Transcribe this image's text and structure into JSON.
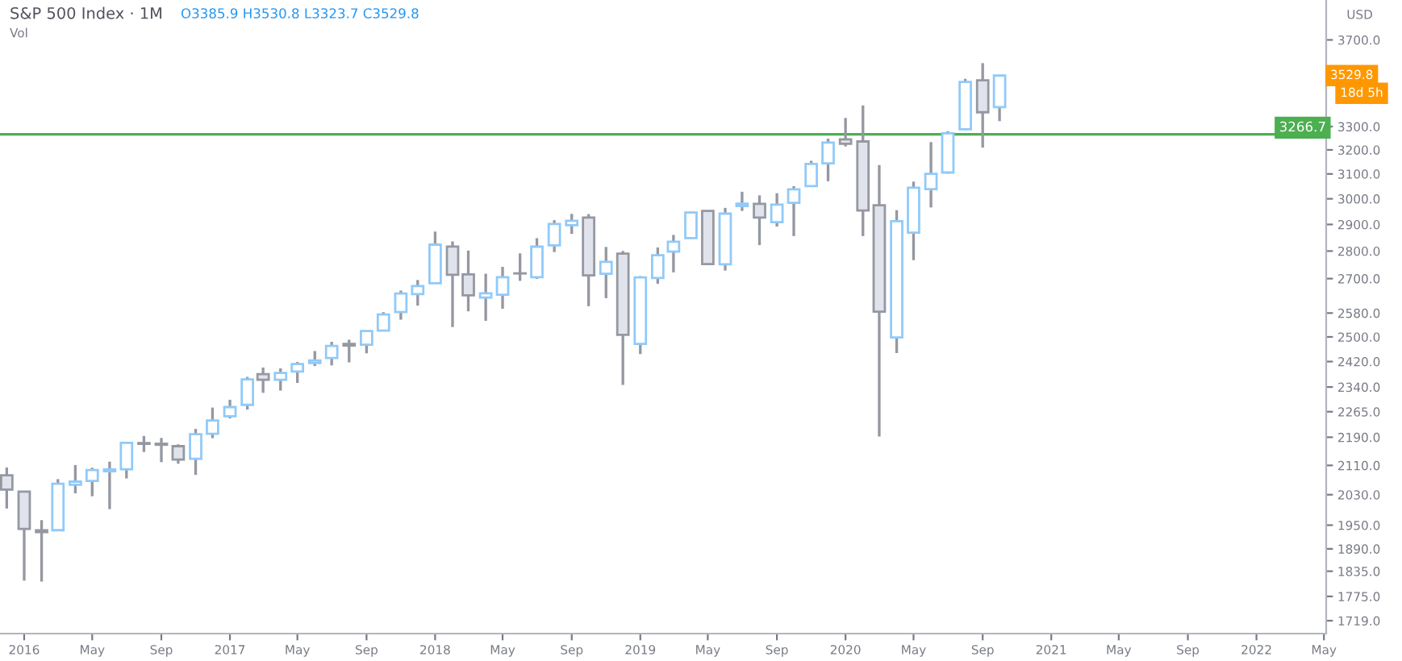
{
  "chart_data": {
    "type": "candlestick",
    "title": "S&P 500 Index · 1M",
    "ylabel": "USD",
    "annotations": [
      "O3385.9 H3530.8 L3323.7 C3529.8",
      "Vol",
      "3529.8",
      "18d 5h"
    ],
    "x": [
      "2015-12",
      "2016-01",
      "2016-02",
      "2016-03",
      "2016-04",
      "2016-05",
      "2016-06",
      "2016-07",
      "2016-08",
      "2016-09",
      "2016-10",
      "2016-11",
      "2016-12",
      "2017-01",
      "2017-02",
      "2017-03",
      "2017-04",
      "2017-05",
      "2017-06",
      "2017-07",
      "2017-08",
      "2017-09",
      "2017-10",
      "2017-11",
      "2017-12",
      "2018-01",
      "2018-02",
      "2018-03",
      "2018-04",
      "2018-05",
      "2018-06",
      "2018-07",
      "2018-08",
      "2018-09",
      "2018-10",
      "2018-11",
      "2018-12",
      "2019-01",
      "2019-02",
      "2019-03",
      "2019-04",
      "2019-05",
      "2019-06",
      "2019-07",
      "2019-08",
      "2019-09",
      "2019-10",
      "2019-11",
      "2019-12",
      "2020-01",
      "2020-02",
      "2020-03",
      "2020-04",
      "2020-05",
      "2020-06",
      "2020-07",
      "2020-08",
      "2020-09",
      "2020-10"
    ],
    "ohlc": [
      [
        2082.9,
        2104.3,
        1993.3,
        2043.9
      ],
      [
        2038.2,
        2038.2,
        1812.3,
        1940.2
      ],
      [
        1936.9,
        1963.0,
        1810.1,
        1932.2
      ],
      [
        1937.1,
        2072.2,
        1937.1,
        2059.7
      ],
      [
        2056.6,
        2111.1,
        2033.8,
        2065.3
      ],
      [
        2067.2,
        2103.5,
        2025.9,
        2097.0
      ],
      [
        2093.9,
        2120.6,
        1991.7,
        2098.9
      ],
      [
        2099.3,
        2177.1,
        2074.0,
        2173.6
      ],
      [
        2173.2,
        2193.8,
        2147.6,
        2171.0
      ],
      [
        2171.3,
        2187.9,
        2119.1,
        2168.3
      ],
      [
        2164.3,
        2169.6,
        2114.7,
        2126.2
      ],
      [
        2128.7,
        2214.1,
        2083.8,
        2198.8
      ],
      [
        2200.2,
        2277.5,
        2187.4,
        2238.8
      ],
      [
        2251.6,
        2301.0,
        2245.1,
        2278.9
      ],
      [
        2285.6,
        2371.5,
        2271.7,
        2363.6
      ],
      [
        2380.1,
        2401.0,
        2322.3,
        2362.7
      ],
      [
        2362.3,
        2398.2,
        2329.0,
        2384.2
      ],
      [
        2388.5,
        2418.7,
        2352.7,
        2411.8
      ],
      [
        2415.6,
        2453.8,
        2405.7,
        2423.4
      ],
      [
        2431.4,
        2484.0,
        2407.7,
        2470.3
      ],
      [
        2477.1,
        2490.9,
        2417.4,
        2471.7
      ],
      [
        2474.4,
        2519.4,
        2446.6,
        2519.4
      ],
      [
        2521.2,
        2583.0,
        2520.4,
        2575.3
      ],
      [
        2583.2,
        2657.7,
        2557.5,
        2647.6
      ],
      [
        2645.1,
        2695.0,
        2605.5,
        2673.6
      ],
      [
        2683.7,
        2872.9,
        2682.4,
        2823.8
      ],
      [
        2816.5,
        2836.0,
        2532.7,
        2713.8
      ],
      [
        2715.2,
        2801.9,
        2585.9,
        2640.9
      ],
      [
        2633.5,
        2717.5,
        2553.8,
        2648.1
      ],
      [
        2643.0,
        2742.2,
        2594.6,
        2705.3
      ],
      [
        2718.7,
        2791.5,
        2692.0,
        2718.4
      ],
      [
        2705.0,
        2848.0,
        2699.0,
        2816.3
      ],
      [
        2821.2,
        2916.5,
        2796.3,
        2901.5
      ],
      [
        2897.0,
        2940.9,
        2864.1,
        2914.0
      ],
      [
        2926.3,
        2939.9,
        2603.5,
        2711.7
      ],
      [
        2717.6,
        2815.2,
        2631.1,
        2760.2
      ],
      [
        2790.5,
        2800.2,
        2346.6,
        2506.9
      ],
      [
        2477.0,
        2709.0,
        2444.0,
        2704.1
      ],
      [
        2702.3,
        2813.5,
        2681.8,
        2784.5
      ],
      [
        2798.2,
        2860.3,
        2722.3,
        2834.4
      ],
      [
        2848.6,
        2949.5,
        2848.6,
        2945.8
      ],
      [
        2952.3,
        2954.1,
        2750.5,
        2752.1
      ],
      [
        2751.5,
        2964.2,
        2728.8,
        2941.8
      ],
      [
        2971.4,
        3028.0,
        2952.2,
        2980.4
      ],
      [
        2980.3,
        3013.6,
        2822.1,
        2926.5
      ],
      [
        2909.0,
        3022.0,
        2891.9,
        2976.7
      ],
      [
        2983.7,
        3050.1,
        2855.9,
        3037.6
      ],
      [
        3050.7,
        3154.3,
        3050.7,
        3141.0
      ],
      [
        3143.9,
        3247.9,
        3070.3,
        3230.8
      ],
      [
        3244.7,
        3337.8,
        3214.6,
        3225.5
      ],
      [
        3235.7,
        3393.5,
        2855.8,
        2954.2
      ],
      [
        2974.3,
        3136.7,
        2191.9,
        2584.6
      ],
      [
        2498.1,
        2954.9,
        2447.5,
        2912.4
      ],
      [
        2869.1,
        3068.7,
        2766.6,
        3044.3
      ],
      [
        3038.8,
        3233.1,
        2965.7,
        3100.3
      ],
      [
        3105.9,
        3280.0,
        3101.2,
        3271.1
      ],
      [
        3288.3,
        3514.8,
        3284.5,
        3500.3
      ],
      [
        3507.4,
        3588.1,
        3209.5,
        3363.0
      ],
      [
        3385.9,
        3530.8,
        3323.7,
        3529.8
      ]
    ],
    "log": true,
    "ylim": [
      1690,
      3900
    ],
    "yticks": [
      {
        "value": 1719,
        "label": "1719.0"
      },
      {
        "value": 1775,
        "label": "1775.0"
      },
      {
        "value": 1835,
        "label": "1835.0"
      },
      {
        "value": 1890,
        "label": "1890.0"
      },
      {
        "value": 1950,
        "label": "1950.0"
      },
      {
        "value": 2030,
        "label": "2030.0"
      },
      {
        "value": 2110,
        "label": "2110.0"
      },
      {
        "value": 2190,
        "label": "2190.0"
      },
      {
        "value": 2265,
        "label": "2265.0"
      },
      {
        "value": 2340,
        "label": "2340.0"
      },
      {
        "value": 2420,
        "label": "2420.0"
      },
      {
        "value": 2500,
        "label": "2500.0"
      },
      {
        "value": 2580,
        "label": "2580.0"
      },
      {
        "value": 2700,
        "label": "2700.0"
      },
      {
        "value": 2800,
        "label": "2800.0"
      },
      {
        "value": 2900,
        "label": "2900.0"
      },
      {
        "value": 3000,
        "label": "3000.0"
      },
      {
        "value": 3100,
        "label": "3100.0"
      },
      {
        "value": 3200,
        "label": "3200.0"
      },
      {
        "value": 3300,
        "label": "3300.0"
      },
      {
        "value": 3700,
        "label": "3700.0"
      }
    ],
    "xlim": [
      "2015-11-19",
      "2022-05-05"
    ],
    "xticks": [
      {
        "value": "2016-01",
        "label": "2016"
      },
      {
        "value": "2016-05",
        "label": "May"
      },
      {
        "value": "2016-09",
        "label": "Sep"
      },
      {
        "value": "2017-01",
        "label": "2017"
      },
      {
        "value": "2017-05",
        "label": "May"
      },
      {
        "value": "2017-09",
        "label": "Sep"
      },
      {
        "value": "2018-01",
        "label": "2018"
      },
      {
        "value": "2018-05",
        "label": "May"
      },
      {
        "value": "2018-09",
        "label": "Sep"
      },
      {
        "value": "2019-01",
        "label": "2019"
      },
      {
        "value": "2019-05",
        "label": "May"
      },
      {
        "value": "2019-09",
        "label": "Sep"
      },
      {
        "value": "2020-01",
        "label": "2020"
      },
      {
        "value": "2020-05",
        "label": "May"
      },
      {
        "value": "2020-09",
        "label": "Sep"
      },
      {
        "value": "2021-01",
        "label": "2021"
      },
      {
        "value": "2021-05",
        "label": "May"
      },
      {
        "value": "2021-09",
        "label": "Sep"
      },
      {
        "value": "2022-01",
        "label": "2022"
      },
      {
        "value": "2022-05",
        "label": "May"
      }
    ],
    "ref_lines": [
      {
        "axis": "y",
        "value": 3266.7,
        "label": "3266.7",
        "color": "#4caf50"
      }
    ],
    "grid": false,
    "legend": false
  }
}
